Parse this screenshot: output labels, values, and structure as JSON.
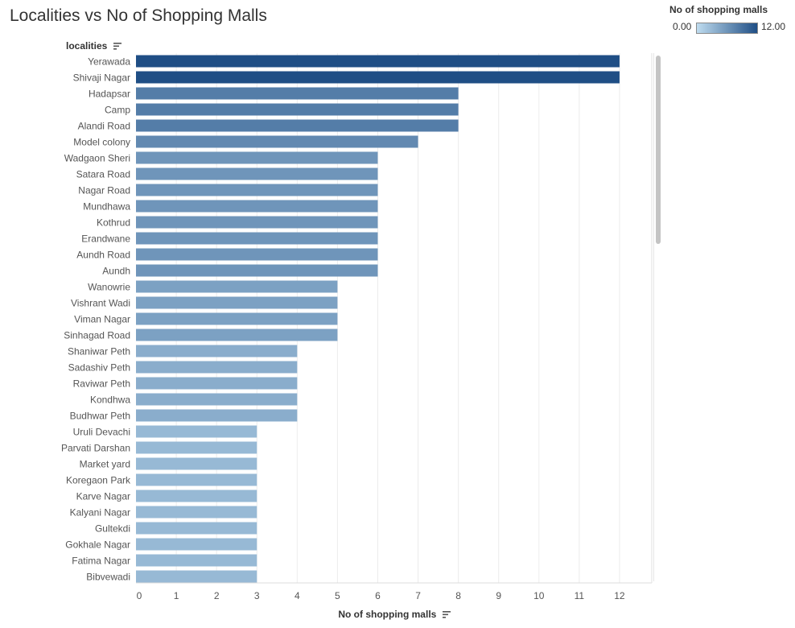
{
  "chart_data": {
    "type": "bar",
    "orientation": "horizontal",
    "title": "Localities vs No of Shopping Malls",
    "ylabel": "localities",
    "xlabel": "No of shopping malls",
    "categories": [
      "Yerawada",
      "Shivaji Nagar",
      "Hadapsar",
      "Camp",
      "Alandi Road",
      "Model colony",
      "Wadgaon Sheri",
      "Satara Road",
      "Nagar Road",
      "Mundhawa",
      "Kothrud",
      "Erandwane",
      "Aundh Road",
      "Aundh",
      "Wanowrie",
      "Vishrant Wadi",
      "Viman Nagar",
      "Sinhagad Road",
      "Shaniwar Peth",
      "Sadashiv Peth",
      "Raviwar Peth",
      "Kondhwa",
      "Budhwar Peth",
      "Uruli Devachi",
      "Parvati Darshan",
      "Market yard",
      "Koregaon Park",
      "Karve Nagar",
      "Kalyani Nagar",
      "Gultekdi",
      "Gokhale Nagar",
      "Fatima Nagar",
      "Bibvewadi"
    ],
    "values": [
      12,
      12,
      8,
      8,
      8,
      7,
      6,
      6,
      6,
      6,
      6,
      6,
      6,
      6,
      5,
      5,
      5,
      5,
      4,
      4,
      4,
      4,
      4,
      3,
      3,
      3,
      3,
      3,
      3,
      3,
      3,
      3,
      3
    ],
    "xlim": [
      0,
      12.8
    ],
    "xticks": [
      "0",
      "1",
      "2",
      "3",
      "4",
      "5",
      "6",
      "7",
      "8",
      "9",
      "10",
      "11",
      "12"
    ],
    "grid": true,
    "color_legend": {
      "title": "No of shopping malls",
      "min_label": "0.00",
      "max_label": "12.00",
      "min": 0,
      "max": 12,
      "color_low": "#bfdcef",
      "color_high": "#1f4e85",
      "placement": "top-right"
    }
  }
}
